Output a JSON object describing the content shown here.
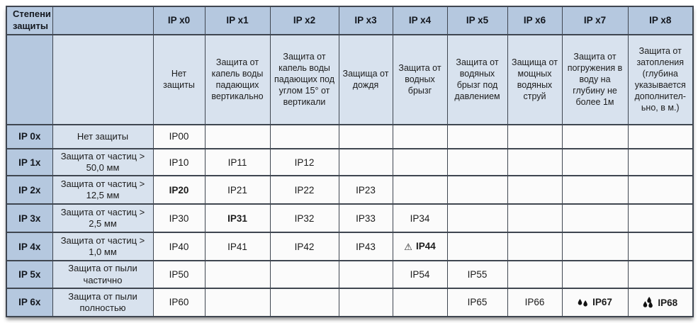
{
  "header": {
    "title": "Степени защиты"
  },
  "columns": [
    {
      "label": "IP x0",
      "desc": "Нет защиты"
    },
    {
      "label": "IP x1",
      "desc": "Защита от капель воды падающих вертикально"
    },
    {
      "label": "IP x2",
      "desc": "Защита от капель воды падающих под углом 15° от вертикали"
    },
    {
      "label": "IP x3",
      "desc": "Защища от дождя"
    },
    {
      "label": "IP x4",
      "desc": "Защита от водных брызг"
    },
    {
      "label": "IP x5",
      "desc": "Защита от водяных брызг под давлением"
    },
    {
      "label": "IP x6",
      "desc": "Защища от мощных водяных струй"
    },
    {
      "label": "IP x7",
      "desc": "Защита от погружения в воду на глубину не более 1м"
    },
    {
      "label": "IP x8",
      "desc": "Защита от затопления (глубина указывается дополнител-ьно, в м.)"
    }
  ],
  "rows": [
    {
      "label": "IP 0x",
      "desc": "Нет защиты",
      "cells": [
        {
          "text": "IP00"
        },
        null,
        null,
        null,
        null,
        null,
        null,
        null,
        null
      ]
    },
    {
      "label": "IP 1x",
      "desc": "Защита от частиц > 50,0 мм",
      "cells": [
        {
          "text": "IP10"
        },
        {
          "text": "IP11"
        },
        {
          "text": "IP12"
        },
        null,
        null,
        null,
        null,
        null,
        null
      ]
    },
    {
      "label": "IP 2x",
      "desc": "Защита от частиц > 12,5 мм",
      "cells": [
        {
          "text": "IP20",
          "bold": true
        },
        {
          "text": "IP21"
        },
        {
          "text": "IP22"
        },
        {
          "text": "IP23"
        },
        null,
        null,
        null,
        null,
        null
      ]
    },
    {
      "label": "IP 3x",
      "desc": "Защита от частиц > 2,5 мм",
      "cells": [
        {
          "text": "IP30"
        },
        {
          "text": "IP31",
          "bold": true
        },
        {
          "text": "IP32"
        },
        {
          "text": "IP33"
        },
        {
          "text": "IP34"
        },
        null,
        null,
        null,
        null
      ]
    },
    {
      "label": "IP 4x",
      "desc": "Защита от частиц > 1,0 мм",
      "cells": [
        {
          "text": "IP40"
        },
        {
          "text": "IP41"
        },
        {
          "text": "IP42"
        },
        {
          "text": "IP43"
        },
        {
          "text": "IP44",
          "bold": true,
          "icon": "warning"
        },
        null,
        null,
        null,
        null
      ]
    },
    {
      "label": "IP 5x",
      "desc": "Защита от пыли частично",
      "cells": [
        {
          "text": "IP50"
        },
        null,
        null,
        null,
        {
          "text": "IP54"
        },
        {
          "text": "IP55"
        },
        null,
        null,
        null
      ]
    },
    {
      "label": "IP 6x",
      "desc": "Защита от пыли полностью",
      "cells": [
        {
          "text": "IP60"
        },
        null,
        null,
        null,
        null,
        {
          "text": "IP65"
        },
        {
          "text": "IP66"
        },
        {
          "text": "IP67",
          "bold": true,
          "icon": "drops-2"
        },
        {
          "text": "IP68",
          "bold": true,
          "icon": "drops-3"
        }
      ]
    }
  ],
  "icons": {
    "warning": "warning-icon",
    "drops-2": "water-drops-icon",
    "drops-3": "water-drops-icon"
  },
  "colors": {
    "header_blue": "#b5c8df",
    "light_blue": "#d8e2ee",
    "cell_bg": "#fbfbfb",
    "border": "#3f4650",
    "text": "#1c1c1c"
  },
  "chart_data": {
    "type": "table",
    "title": "Степени защиты",
    "column_headers": [
      "IP x0",
      "IP x1",
      "IP x2",
      "IP x3",
      "IP x4",
      "IP x5",
      "IP x6",
      "IP x7",
      "IP x8"
    ],
    "column_descriptions": [
      "Нет защиты",
      "Защита от капель воды падающих вертикально",
      "Защита от капель воды падающих под углом 15° от вертикали",
      "Защища от дождя",
      "Защита от водных брызг",
      "Защита от водяных брызг под давлением",
      "Защища от мощных водяных струй",
      "Защита от погружения в воду на глубину не более 1м",
      "Защита от затопления (глубина указывается дополнител-ьно, в м.)"
    ],
    "row_headers": [
      "IP 0x",
      "IP 1x",
      "IP 2x",
      "IP 3x",
      "IP 4x",
      "IP 5x",
      "IP 6x"
    ],
    "row_descriptions": [
      "Нет защиты",
      "Защита от частиц > 50,0 мм",
      "Защита от частиц > 12,5 мм",
      "Защита от частиц > 2,5 мм",
      "Защита от частиц > 1,0 мм",
      "Защита от пыли частично",
      "Защита от пыли полностью"
    ],
    "matrix": [
      [
        "IP00",
        "",
        "",
        "",
        "",
        "",
        "",
        "",
        ""
      ],
      [
        "IP10",
        "IP11",
        "IP12",
        "",
        "",
        "",
        "",
        "",
        ""
      ],
      [
        "IP20",
        "IP21",
        "IP22",
        "IP23",
        "",
        "",
        "",
        "",
        ""
      ],
      [
        "IP30",
        "IP31",
        "IP32",
        "IP33",
        "IP34",
        "",
        "",
        "",
        ""
      ],
      [
        "IP40",
        "IP41",
        "IP42",
        "IP43",
        "IP44",
        "",
        "",
        "",
        ""
      ],
      [
        "IP50",
        "",
        "",
        "",
        "IP54",
        "IP55",
        "",
        "",
        ""
      ],
      [
        "IP60",
        "",
        "",
        "",
        "",
        "IP65",
        "IP66",
        "IP67",
        "IP68"
      ]
    ],
    "bold_cells": [
      "IP20",
      "IP31",
      "IP44",
      "IP67",
      "IP68"
    ],
    "icon_cells": {
      "IP44": "warning",
      "IP67": "drops-2",
      "IP68": "drops-3"
    }
  }
}
